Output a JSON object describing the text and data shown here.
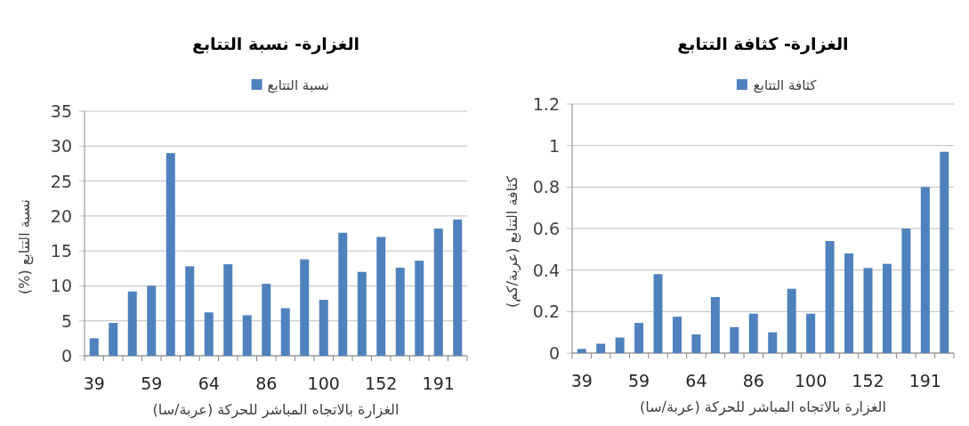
{
  "chart_data": [
    {
      "type": "bar",
      "title": "الغزارة- نسبة التتابع",
      "xlabel": "الغزارة بالاتجاه المباشر للحركة (عربة/سا)",
      "ylabel": "نسبة التتابع (%)",
      "categories": [
        "39",
        null,
        null,
        "59",
        null,
        null,
        "64",
        null,
        null,
        "86",
        null,
        null,
        "100",
        null,
        null,
        "152",
        null,
        null,
        "191",
        null
      ],
      "series": [
        {
          "name": "نسبة التتابع",
          "color": "#4f81bd",
          "values": [
            2.5,
            4.7,
            9.2,
            10,
            29,
            12.8,
            6.2,
            13.1,
            5.8,
            10.3,
            6.8,
            13.8,
            8,
            17.6,
            12,
            17,
            12.6,
            13.6,
            18.2,
            19.5
          ]
        }
      ],
      "ylim": [
        0,
        35
      ],
      "yticks": [
        0,
        5,
        10,
        15,
        20,
        25,
        30,
        35
      ],
      "grid": "y",
      "legend": "top"
    },
    {
      "type": "bar",
      "title": "الغزارة- كثافة التتابع",
      "xlabel": "الغزارة بالاتجاه المباشر للحركة (عربة/سا)",
      "ylabel": "كثافة التتابع (عربة/كم)",
      "categories": [
        "39",
        null,
        null,
        "59",
        null,
        null,
        "64",
        null,
        null,
        "86",
        null,
        null,
        "100",
        null,
        null,
        "152",
        null,
        null,
        "191",
        null
      ],
      "series": [
        {
          "name": "كثافة التتابع",
          "color": "#4f81bd",
          "values": [
            0.02,
            0.045,
            0.075,
            0.145,
            0.38,
            0.175,
            0.09,
            0.27,
            0.125,
            0.19,
            0.1,
            0.31,
            0.19,
            0.54,
            0.48,
            0.41,
            0.43,
            0.6,
            0.8,
            0.97
          ]
        }
      ],
      "ylim": [
        0,
        1.2
      ],
      "yticks": [
        0,
        0.2,
        0.4,
        0.6,
        0.8,
        1,
        1.2
      ],
      "grid": "y",
      "legend": "top"
    }
  ]
}
